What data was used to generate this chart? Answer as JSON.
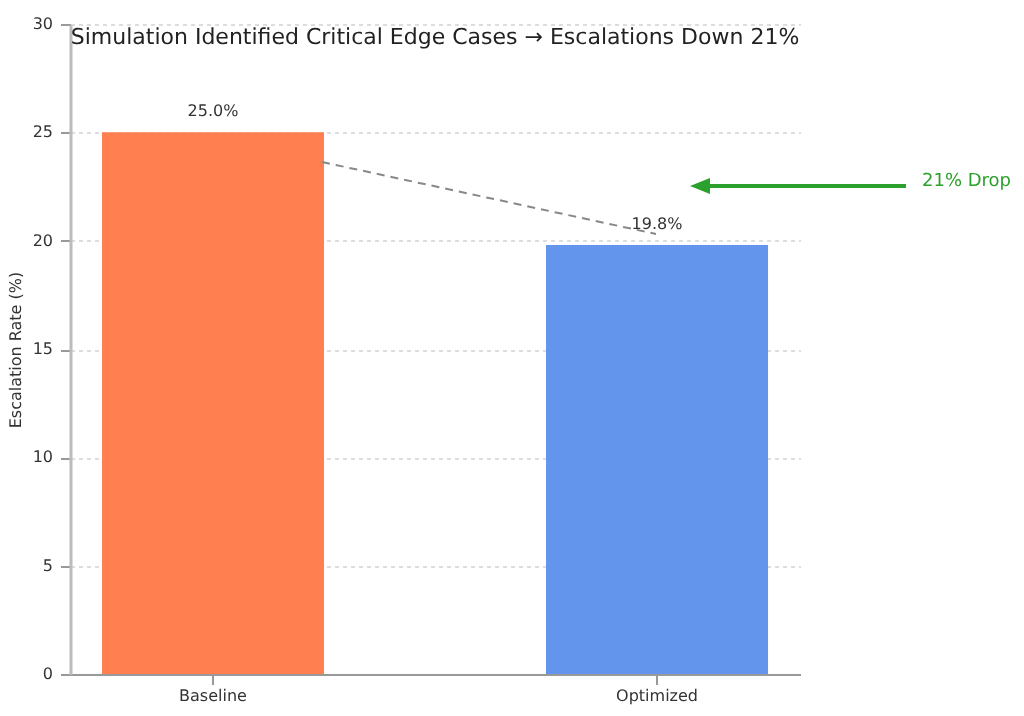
{
  "chart_data": {
    "type": "bar",
    "title": "Simulation Identified Critical Edge Cases → Escalations Down 21%",
    "ylabel": "Escalation Rate (%)",
    "categories": [
      "Baseline",
      "Optimized"
    ],
    "values": [
      25.0,
      19.8
    ],
    "colors": [
      "#ff7f50",
      "#6495ed"
    ],
    "value_labels": [
      "25.0%",
      "19.8%"
    ],
    "ylim": [
      0,
      30
    ],
    "yticks": [
      0,
      5,
      10,
      15,
      20,
      25,
      30
    ],
    "grid": "y",
    "annotations": [
      "21% Drop"
    ]
  }
}
